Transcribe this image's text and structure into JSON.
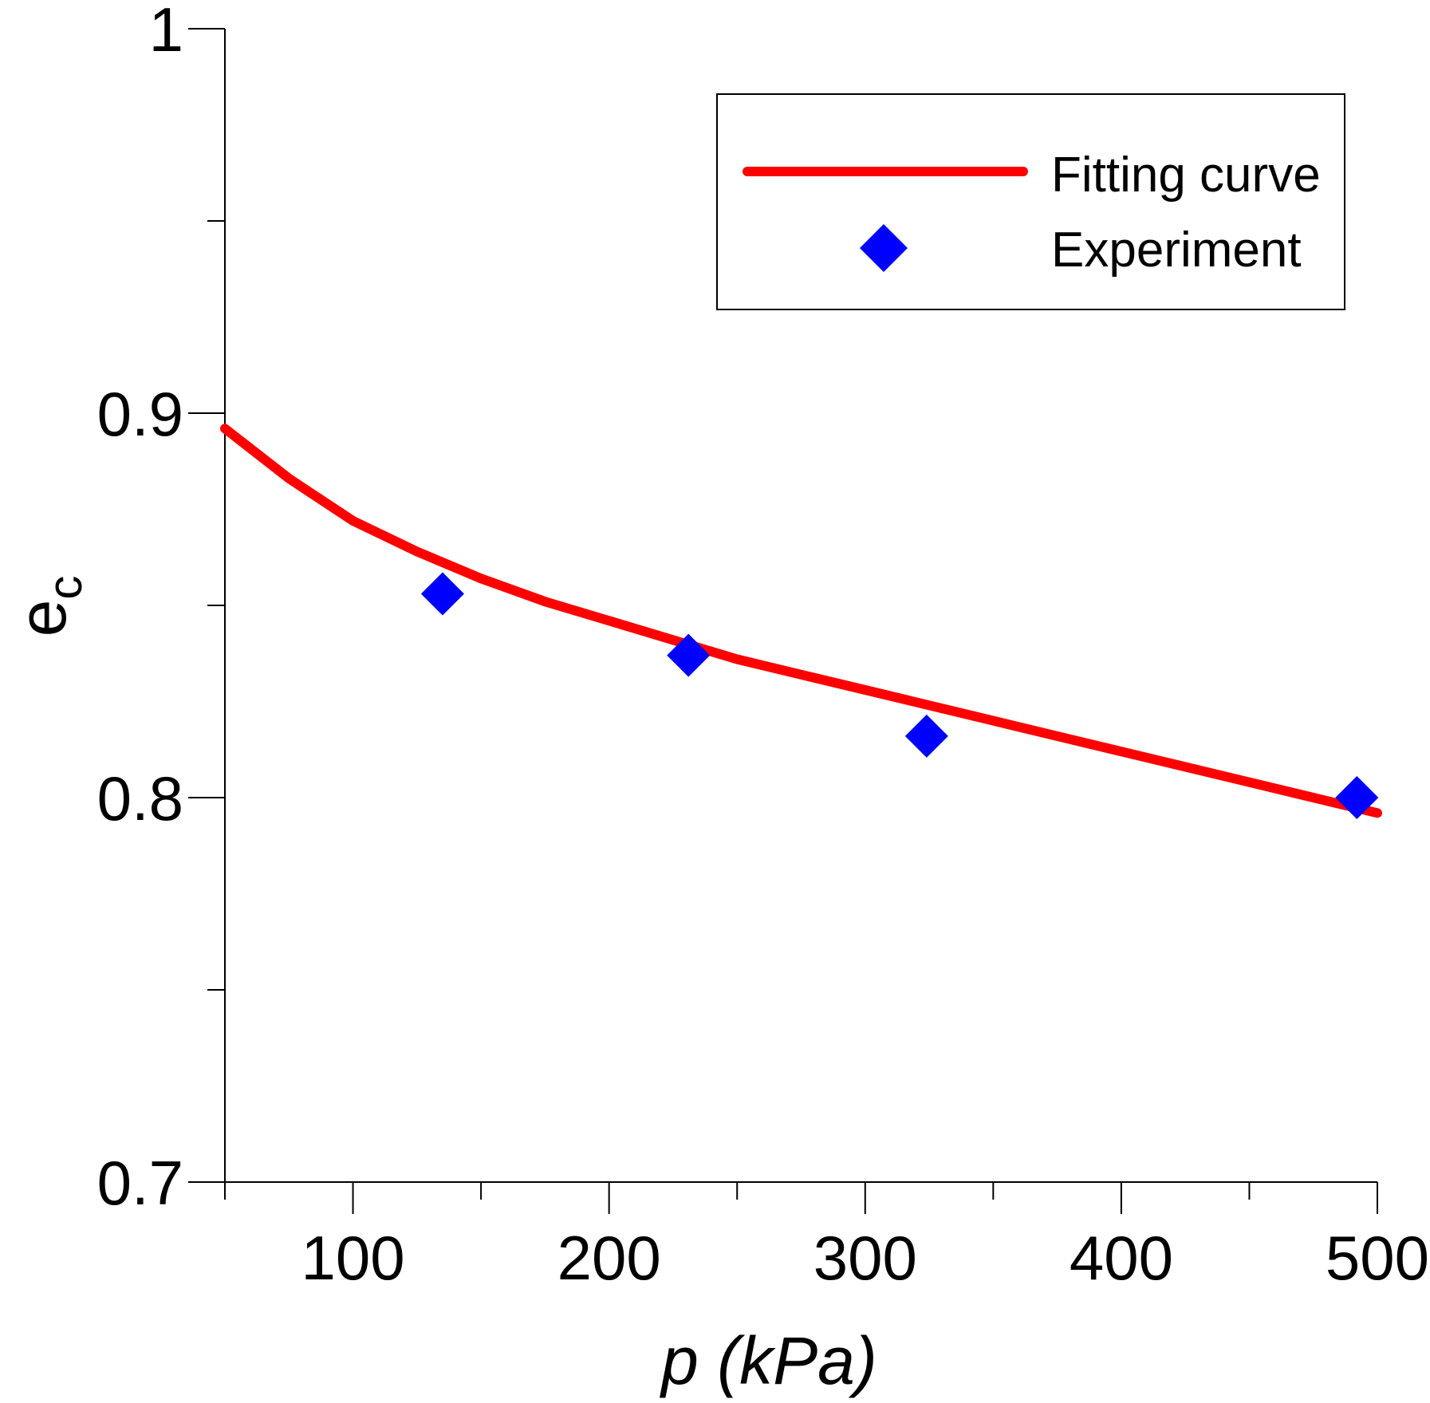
{
  "chart_data": {
    "type": "scatter",
    "xlabel_var": "p",
    "xlabel_unit": "(kPa)",
    "ylabel_main": "e",
    "ylabel_sub": "c",
    "xlim": [
      50,
      500
    ],
    "ylim": [
      0.7,
      1.0
    ],
    "x_ticks": [
      100,
      200,
      300,
      400,
      500
    ],
    "x_minor_ticks": [
      50,
      150,
      250,
      350,
      450
    ],
    "y_ticks": [
      0.7,
      0.8,
      0.9,
      1.0
    ],
    "y_tick_labels": [
      "0.7",
      "0.8",
      "0.9",
      "1"
    ],
    "y_minor_ticks": [
      0.75,
      0.85,
      0.95
    ],
    "grid": false,
    "legend_position": "top-right",
    "series": [
      {
        "name": "Fitting curve",
        "kind": "line",
        "color": "#ff0000",
        "x": [
          50,
          75,
          100,
          125,
          150,
          175,
          200,
          225,
          250,
          275,
          300,
          325,
          350,
          375,
          400,
          425,
          450,
          475,
          500
        ],
        "y": [
          0.896,
          0.883,
          0.872,
          0.864,
          0.857,
          0.851,
          0.846,
          0.841,
          0.836,
          0.832,
          0.828,
          0.824,
          0.82,
          0.816,
          0.812,
          0.808,
          0.804,
          0.8,
          0.796
        ]
      },
      {
        "name": "Experiment",
        "kind": "scatter",
        "color": "#0000ff",
        "marker": "diamond",
        "x": [
          135,
          231,
          324,
          492
        ],
        "y": [
          0.853,
          0.837,
          0.816,
          0.8
        ]
      }
    ]
  }
}
